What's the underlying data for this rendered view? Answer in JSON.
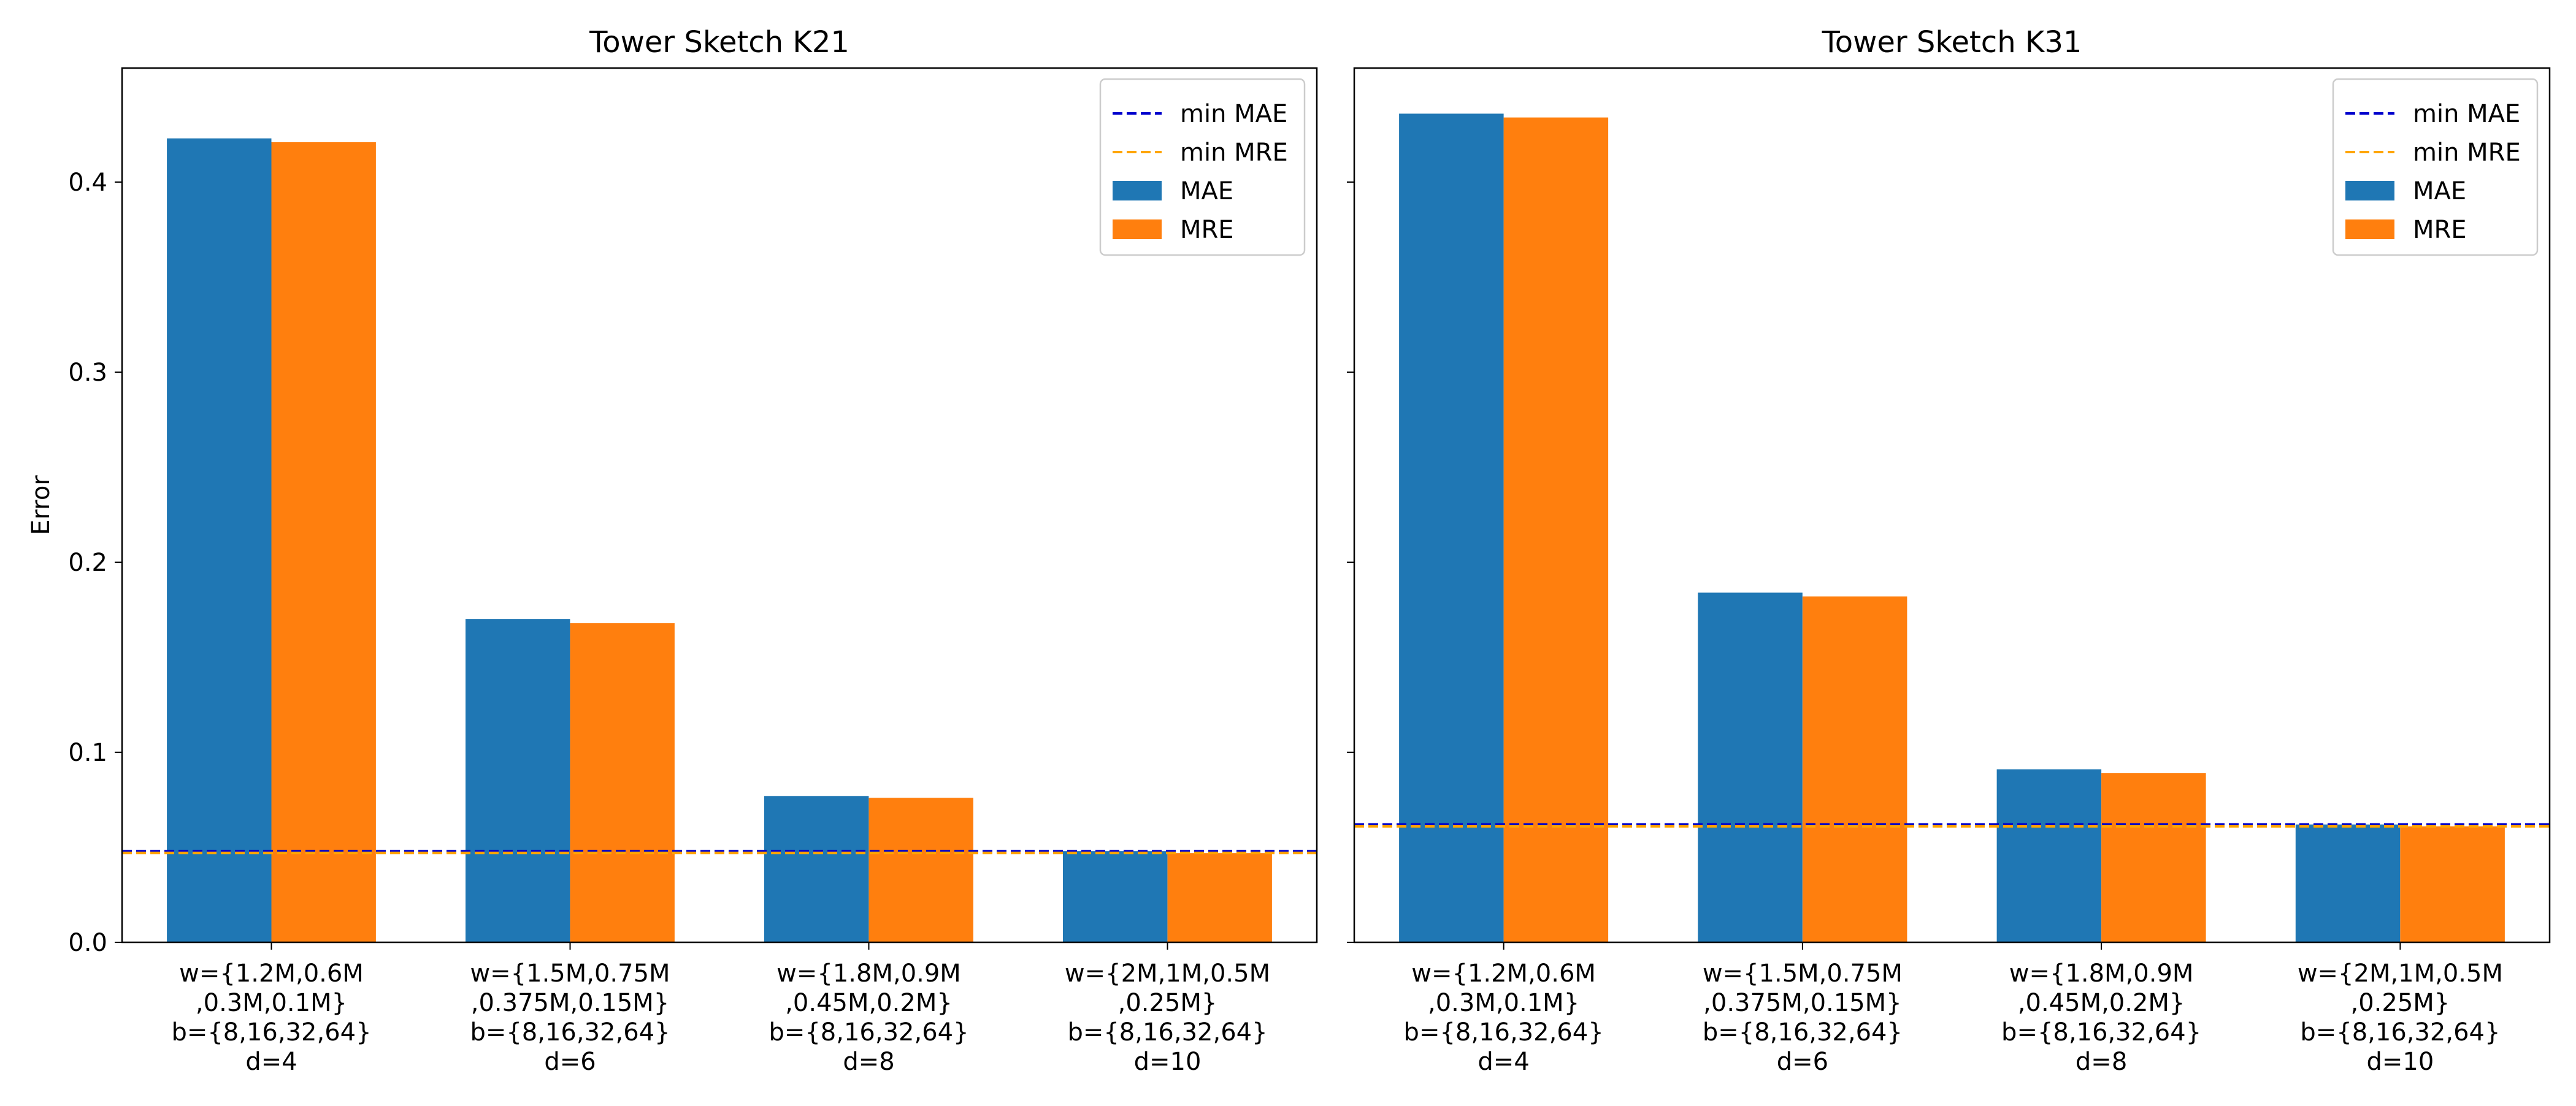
{
  "chart_data": [
    {
      "type": "bar",
      "title": "Tower Sketch K21",
      "xlabel": "",
      "ylabel": "Error",
      "ylim": [
        0,
        0.46
      ],
      "yticks": [
        "0.0",
        "0.1",
        "0.2",
        "0.3",
        "0.4"
      ],
      "ytick_values": [
        0.0,
        0.1,
        0.2,
        0.3,
        0.4
      ],
      "categories": [
        [
          "w={1.2M,0.6M",
          ",0.3M,0.1M}",
          "b={8,16,32,64}",
          "d=4"
        ],
        [
          "w={1.5M,0.75M",
          ",0.375M,0.15M}",
          "b={8,16,32,64}",
          "d=6"
        ],
        [
          "w={1.8M,0.9M",
          ",0.45M,0.2M}",
          "b={8,16,32,64}",
          "d=8"
        ],
        [
          "w={2M,1M,0.5M",
          ",0.25M}",
          "b={8,16,32,64}",
          "d=10"
        ]
      ],
      "series": [
        {
          "name": "MAE",
          "color": "#1f77b4",
          "values": [
            0.423,
            0.17,
            0.077,
            0.048
          ]
        },
        {
          "name": "MRE",
          "color": "#ff7f0e",
          "values": [
            0.421,
            0.168,
            0.076,
            0.047
          ]
        }
      ],
      "reference_lines": [
        {
          "name": "min MAE",
          "value": 0.048,
          "color": "#0000cc",
          "style": "dashed"
        },
        {
          "name": "min MRE",
          "value": 0.047,
          "color": "#ffa500",
          "style": "dashed"
        }
      ],
      "legend_position": "top-right"
    },
    {
      "type": "bar",
      "title": "Tower Sketch K31",
      "xlabel": "",
      "ylabel": "",
      "ylim": [
        0,
        0.46
      ],
      "yticks": [],
      "ytick_values": [
        0.0,
        0.1,
        0.2,
        0.3,
        0.4
      ],
      "categories": [
        [
          "w={1.2M,0.6M",
          ",0.3M,0.1M}",
          "b={8,16,32,64}",
          "d=4"
        ],
        [
          "w={1.5M,0.75M",
          ",0.375M,0.15M}",
          "b={8,16,32,64}",
          "d=6"
        ],
        [
          "w={1.8M,0.9M",
          ",0.45M,0.2M}",
          "b={8,16,32,64}",
          "d=8"
        ],
        [
          "w={2M,1M,0.5M",
          ",0.25M}",
          "b={8,16,32,64}",
          "d=10"
        ]
      ],
      "series": [
        {
          "name": "MAE",
          "color": "#1f77b4",
          "values": [
            0.436,
            0.184,
            0.091,
            0.062
          ]
        },
        {
          "name": "MRE",
          "color": "#ff7f0e",
          "values": [
            0.434,
            0.182,
            0.089,
            0.061
          ]
        }
      ],
      "reference_lines": [
        {
          "name": "min MAE",
          "value": 0.062,
          "color": "#0000cc",
          "style": "dashed"
        },
        {
          "name": "min MRE",
          "value": 0.061,
          "color": "#ffa500",
          "style": "dashed"
        }
      ],
      "legend_position": "top-right"
    }
  ]
}
